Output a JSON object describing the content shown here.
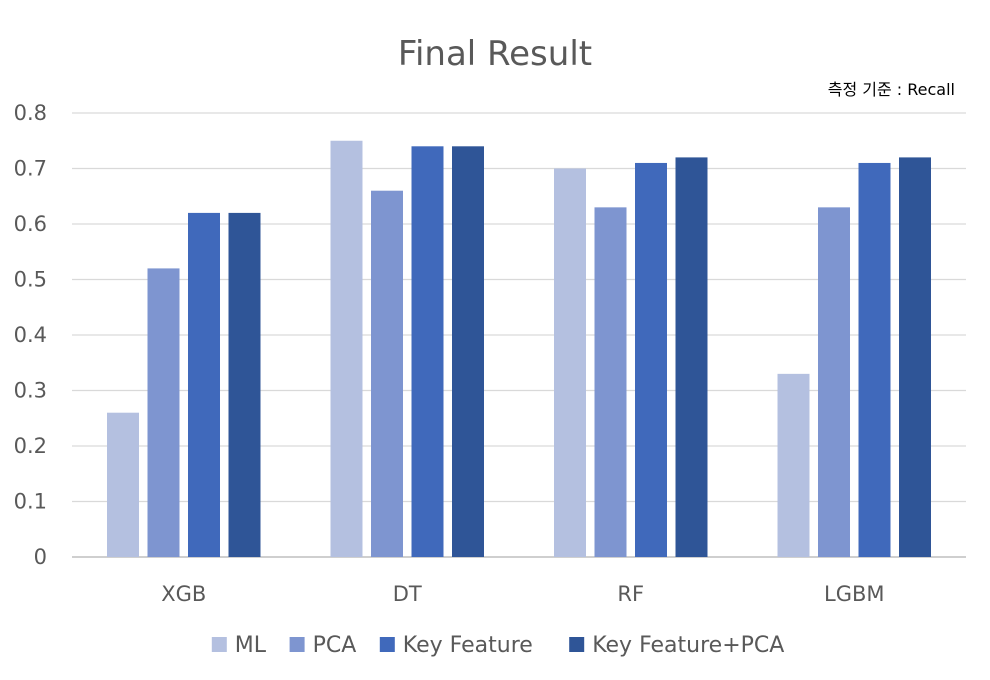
{
  "chart_data": {
    "type": "bar",
    "title": "Final Result",
    "annotation": "측정 기준 : Recall",
    "xlabel": "",
    "ylabel": "",
    "categories": [
      "XGB",
      "DT",
      "RF",
      "LGBM"
    ],
    "series": [
      {
        "name": "ML",
        "color": "#b4c0e0",
        "values": [
          0.26,
          0.75,
          0.7,
          0.33
        ]
      },
      {
        "name": "PCA",
        "color": "#7e95d0",
        "values": [
          0.52,
          0.66,
          0.63,
          0.63
        ]
      },
      {
        "name": "Key Feature",
        "color": "#4069bb",
        "values": [
          0.62,
          0.74,
          0.71,
          0.71
        ]
      },
      {
        "name": "Key Feature+PCA",
        "color": "#2f5597",
        "values": [
          0.62,
          0.74,
          0.72,
          0.72
        ]
      }
    ],
    "ylim": [
      0,
      0.8
    ],
    "yticks": [
      "0",
      "0.1",
      "0.2",
      "0.3",
      "0.4",
      "0.5",
      "0.6",
      "0.7",
      "0.8"
    ],
    "grid": true,
    "legend_position": "bottom"
  }
}
